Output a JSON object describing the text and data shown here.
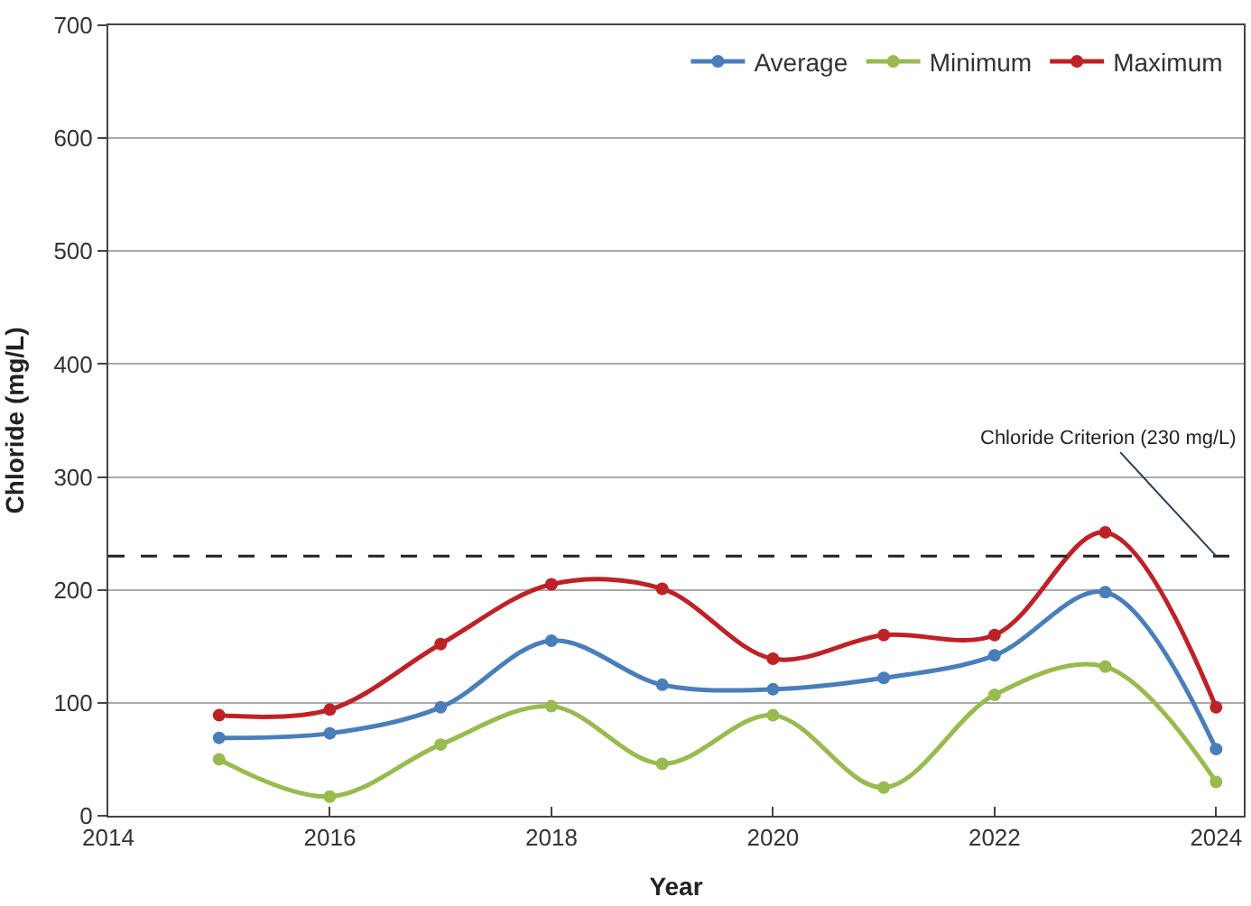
{
  "chart_data": {
    "type": "line",
    "xlabel": "Year",
    "ylabel": "Chloride (mg/L)",
    "x": [
      2015,
      2016,
      2017,
      2018,
      2019,
      2020,
      2021,
      2022,
      2023,
      2024
    ],
    "series": [
      {
        "name": "Average",
        "color": "#4a7ebb",
        "values": [
          69,
          73,
          96,
          155,
          116,
          112,
          122,
          142,
          198,
          59
        ]
      },
      {
        "name": "Minimum",
        "color": "#98bb4f",
        "values": [
          50,
          17,
          63,
          97,
          46,
          89,
          25,
          107,
          132,
          30
        ]
      },
      {
        "name": "Maximum",
        "color": "#be2126",
        "values": [
          89,
          94,
          152,
          205,
          201,
          139,
          160,
          160,
          251,
          96
        ]
      }
    ],
    "xlim": [
      2014,
      2024.25
    ],
    "xticks": [
      2014,
      2016,
      2018,
      2020,
      2022,
      2024
    ],
    "ylim": [
      0,
      700
    ],
    "yticks": [
      0,
      100,
      200,
      300,
      400,
      500,
      600,
      700
    ],
    "ref_lines": [
      {
        "axis": "y",
        "value": 230,
        "label": "Chloride Criterion (230 mg/L)",
        "color": "#222222",
        "line_style": "dashed"
      }
    ],
    "grid": "y",
    "legend": "top right",
    "marker": "circle",
    "line_style": "solid"
  }
}
